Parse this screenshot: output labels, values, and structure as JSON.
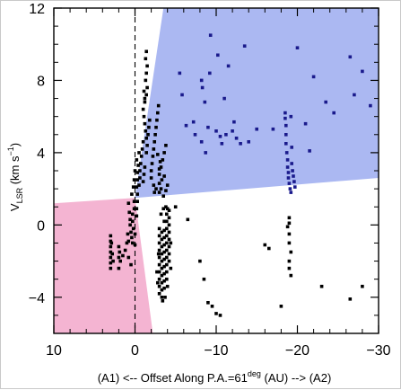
{
  "chart_data": {
    "type": "scatter",
    "title": "",
    "xlabel": {
      "prefix": "(A1) <-- Offset Along P.A.=61",
      "superscript": "deg",
      "suffix": " (AU) --> (A2)"
    },
    "ylabel": {
      "main": "V",
      "subscript": "LSR",
      "unit_open": " (km s",
      "unit_exp": "−1",
      "unit_close": ")"
    },
    "xlim": [
      10,
      -30
    ],
    "ylim": [
      -6,
      12
    ],
    "x_ticks": [
      10,
      0,
      -10,
      -20,
      -30
    ],
    "x_tick_labels": [
      "10",
      "0",
      "−10",
      "−20",
      "−30"
    ],
    "y_ticks": [
      -4,
      0,
      4,
      8,
      12
    ],
    "y_tick_labels": [
      "−4",
      "0",
      "4",
      "8",
      "12"
    ],
    "reference_line": {
      "x": 0,
      "style": "dashed"
    },
    "regions": [
      {
        "name": "blue-region",
        "color": "#abb8f2",
        "polygon": [
          [
            0,
            1.5
          ],
          [
            -3.5,
            12
          ],
          [
            -30,
            12
          ],
          [
            -30,
            2.6
          ]
        ]
      },
      {
        "name": "pink-region",
        "color": "#f4b4d2",
        "polygon": [
          [
            10,
            1.2
          ],
          [
            0,
            1.5
          ],
          [
            -2.2,
            -6
          ],
          [
            10,
            -6
          ]
        ]
      }
    ],
    "series": [
      {
        "color": "#000000",
        "points": [
          [
            3.0,
            -0.6
          ],
          [
            3.0,
            -0.9
          ],
          [
            3.0,
            -1.2
          ],
          [
            3.0,
            -1.5
          ],
          [
            3.0,
            -1.8
          ],
          [
            3.0,
            -2.1
          ],
          [
            3.0,
            -2.4
          ],
          [
            2.9,
            -1.0
          ],
          [
            2.8,
            -1.6
          ],
          [
            2.7,
            -2.0
          ],
          [
            2.0,
            -1.2
          ],
          [
            2.0,
            -1.8
          ],
          [
            2.0,
            -2.4
          ],
          [
            1.9,
            -1.5
          ],
          [
            1.8,
            -2.0
          ],
          [
            1.5,
            -1.7
          ],
          [
            1.2,
            -1.4
          ],
          [
            1.0,
            -1.0
          ],
          [
            0.8,
            -1.8
          ],
          [
            0.5,
            -2.2
          ],
          [
            0.5,
            -0.4
          ],
          [
            0.4,
            -0.7
          ],
          [
            0.3,
            -1.0
          ],
          [
            0.3,
            0.2
          ],
          [
            0.3,
            0.6
          ],
          [
            0.2,
            -0.2
          ],
          [
            0.1,
            0.9
          ],
          [
            0.1,
            1.3
          ],
          [
            0.0,
            -0.5
          ],
          [
            0.0,
            -1.1
          ],
          [
            0.6,
            0.0
          ],
          [
            0.6,
            0.3
          ],
          [
            0.7,
            0.7
          ],
          [
            0.8,
            1.2
          ],
          [
            0.8,
            -0.9
          ],
          [
            0.9,
            -0.5
          ],
          [
            0.4,
            1.7
          ],
          [
            0.2,
            2.1
          ],
          [
            0.1,
            2.5
          ],
          [
            0.0,
            3.0
          ],
          [
            -0.2,
            0.5
          ],
          [
            -0.2,
            0.9
          ],
          [
            -0.3,
            1.3
          ],
          [
            -0.3,
            1.7
          ],
          [
            -0.2,
            2.1
          ],
          [
            -0.3,
            2.5
          ],
          [
            -0.3,
            2.9
          ],
          [
            -0.4,
            3.3
          ],
          [
            -0.2,
            3.6
          ],
          [
            -0.5,
            4.0
          ],
          [
            -0.5,
            2.2
          ],
          [
            -0.6,
            2.6
          ],
          [
            -0.6,
            3.0
          ],
          [
            -0.7,
            3.4
          ],
          [
            -0.8,
            3.8
          ],
          [
            -0.9,
            4.2
          ],
          [
            -1.0,
            4.6
          ],
          [
            -1.0,
            2.4
          ],
          [
            -1.1,
            2.8
          ],
          [
            -1.2,
            3.2
          ],
          [
            -1.4,
            4.0
          ],
          [
            -1.5,
            4.4
          ],
          [
            -1.4,
            4.8
          ],
          [
            -1.3,
            5.2
          ],
          [
            -1.2,
            5.6
          ],
          [
            -1.1,
            6.0
          ],
          [
            -1.0,
            6.4
          ],
          [
            -1.2,
            6.8
          ],
          [
            -1.4,
            7.2
          ],
          [
            -1.5,
            7.6
          ],
          [
            -1.3,
            8.0
          ],
          [
            -1.4,
            8.4
          ],
          [
            -1.5,
            8.8
          ],
          [
            -1.3,
            9.2
          ],
          [
            -1.4,
            9.6
          ],
          [
            -1.2,
            7.0
          ],
          [
            -1.1,
            7.4
          ],
          [
            -1.6,
            5.0
          ],
          [
            -1.7,
            5.4
          ],
          [
            -1.8,
            5.8
          ],
          [
            -2.0,
            3.0
          ],
          [
            -2.1,
            3.4
          ],
          [
            -2.2,
            3.8
          ],
          [
            -2.3,
            4.2
          ],
          [
            -2.4,
            4.6
          ],
          [
            -2.5,
            5.0
          ],
          [
            -2.6,
            5.4
          ],
          [
            -2.7,
            5.8
          ],
          [
            -2.8,
            6.2
          ],
          [
            -2.9,
            6.6
          ],
          [
            -2.0,
            2.6
          ],
          [
            -2.3,
            2.2
          ],
          [
            -2.6,
            2.0
          ],
          [
            -3.0,
            2.3
          ],
          [
            -3.3,
            2.5
          ],
          [
            -3.6,
            2.7
          ],
          [
            -3.0,
            2.8
          ],
          [
            -3.2,
            3.2
          ],
          [
            -3.4,
            3.6
          ],
          [
            -3.6,
            4.0
          ],
          [
            -3.8,
            4.4
          ],
          [
            -3.0,
            3.1
          ],
          [
            -3.1,
            3.5
          ],
          [
            -2.8,
            3.9
          ],
          [
            -3.0,
            1.8
          ],
          [
            -3.2,
            2.0
          ],
          [
            -3.5,
            1.6
          ],
          [
            -3.8,
            1.9
          ],
          [
            -4.0,
            2.2
          ],
          [
            -2.4,
            1.8
          ],
          [
            -3.0,
            -0.2
          ],
          [
            -3.0,
            -0.6
          ],
          [
            -3.0,
            -1.0
          ],
          [
            -3.0,
            -1.4
          ],
          [
            -3.0,
            -1.8
          ],
          [
            -3.0,
            -2.2
          ],
          [
            -3.0,
            -2.6
          ],
          [
            -3.0,
            -3.0
          ],
          [
            -3.0,
            -3.4
          ],
          [
            -3.0,
            -3.8
          ],
          [
            -3.3,
            -0.4
          ],
          [
            -3.3,
            -0.8
          ],
          [
            -3.3,
            -1.2
          ],
          [
            -3.3,
            -1.6
          ],
          [
            -3.3,
            -2.0
          ],
          [
            -3.3,
            -2.4
          ],
          [
            -3.3,
            -2.8
          ],
          [
            -3.3,
            -3.2
          ],
          [
            -3.3,
            -3.6
          ],
          [
            -3.3,
            -4.0
          ],
          [
            -3.6,
            0.2
          ],
          [
            -3.6,
            -0.3
          ],
          [
            -3.6,
            -0.7
          ],
          [
            -3.6,
            -1.1
          ],
          [
            -3.6,
            -1.5
          ],
          [
            -3.6,
            -1.9
          ],
          [
            -3.6,
            -2.3
          ],
          [
            -3.6,
            -2.7
          ],
          [
            -3.6,
            -3.1
          ],
          [
            -3.6,
            -3.5
          ],
          [
            -3.9,
            0.6
          ],
          [
            -3.9,
            0.2
          ],
          [
            -3.9,
            -0.2
          ],
          [
            -3.9,
            -0.6
          ],
          [
            -3.9,
            -1.0
          ],
          [
            -3.9,
            -1.4
          ],
          [
            -3.9,
            -1.8
          ],
          [
            -3.9,
            -2.2
          ],
          [
            -3.9,
            -2.6
          ],
          [
            -3.9,
            -3.0
          ],
          [
            -4.2,
            0.8
          ],
          [
            -4.2,
            0.4
          ],
          [
            -4.2,
            0.0
          ],
          [
            -4.2,
            -0.4
          ],
          [
            -4.2,
            -0.8
          ],
          [
            -4.2,
            -1.2
          ],
          [
            -4.2,
            -1.6
          ],
          [
            -4.2,
            -2.0
          ],
          [
            -4.4,
            -1.0
          ],
          [
            -4.4,
            -2.4
          ],
          [
            -2.8,
            -3.2
          ],
          [
            -2.7,
            -2.6
          ],
          [
            -2.9,
            -1.6
          ],
          [
            -3.4,
            -4.2
          ],
          [
            -3.7,
            -4.0
          ],
          [
            -4.0,
            -3.4
          ],
          [
            -4.0,
            0.9
          ],
          [
            -3.5,
            0.9
          ],
          [
            -3.2,
            0.6
          ],
          [
            -3.8,
            1.0
          ],
          [
            -5.0,
            1.0
          ],
          [
            -6.5,
            0.3
          ],
          [
            -8.0,
            -2.0
          ],
          [
            -8.5,
            -3.0
          ],
          [
            -9.0,
            -4.3
          ],
          [
            -9.5,
            -4.5
          ],
          [
            -10.0,
            -4.9
          ],
          [
            -10.5,
            -5.0
          ],
          [
            -16.0,
            -1.1
          ],
          [
            -16.5,
            -1.3
          ],
          [
            -18.0,
            -4.5
          ],
          [
            -18.8,
            -0.1
          ],
          [
            -19.0,
            -0.5
          ],
          [
            -19.0,
            -1.0
          ],
          [
            -19.2,
            -1.5
          ],
          [
            -19.0,
            -2.0
          ],
          [
            -19.0,
            -2.4
          ],
          [
            -19.2,
            -2.8
          ],
          [
            -19.0,
            0.1
          ],
          [
            -19.0,
            0.4
          ],
          [
            -23.0,
            -3.4
          ],
          [
            -26.5,
            -4.1
          ],
          [
            -28.0,
            -3.4
          ]
        ]
      },
      {
        "color": "#1a1a8c",
        "points": [
          [
            -5.5,
            8.4
          ],
          [
            -5.8,
            7.2
          ],
          [
            -6.3,
            5.5
          ],
          [
            -7.2,
            5.7
          ],
          [
            -7.4,
            5.0
          ],
          [
            -8.2,
            4.6
          ],
          [
            -8.2,
            8.0
          ],
          [
            -8.3,
            7.6
          ],
          [
            -8.6,
            6.8
          ],
          [
            -8.7,
            4.0
          ],
          [
            -9.0,
            5.4
          ],
          [
            -9.2,
            8.4
          ],
          [
            -9.3,
            10.5
          ],
          [
            -10.0,
            5.2
          ],
          [
            -10.2,
            9.4
          ],
          [
            -10.5,
            4.9
          ],
          [
            -10.7,
            4.5
          ],
          [
            -11.0,
            7.0
          ],
          [
            -11.2,
            5.0
          ],
          [
            -11.5,
            8.8
          ],
          [
            -12.0,
            5.2
          ],
          [
            -12.2,
            5.7
          ],
          [
            -12.5,
            4.8
          ],
          [
            -13.0,
            4.5
          ],
          [
            -13.5,
            9.9
          ],
          [
            -14.0,
            4.6
          ],
          [
            -15.0,
            5.3
          ],
          [
            -17.0,
            5.3
          ],
          [
            -18.5,
            6.2
          ],
          [
            -18.5,
            5.9
          ],
          [
            -18.6,
            5.5
          ],
          [
            -18.6,
            5.0
          ],
          [
            -18.6,
            4.5
          ],
          [
            -18.7,
            4.0
          ],
          [
            -18.8,
            3.6
          ],
          [
            -18.8,
            3.2
          ],
          [
            -18.9,
            2.9
          ],
          [
            -18.9,
            2.6
          ],
          [
            -19.0,
            2.3
          ],
          [
            -19.1,
            2.0
          ],
          [
            -19.2,
            1.8
          ],
          [
            -19.3,
            3.4
          ],
          [
            -19.4,
            3.0
          ],
          [
            -19.5,
            2.7
          ],
          [
            -19.6,
            2.4
          ],
          [
            -19.7,
            2.1
          ],
          [
            -19.2,
            6.0
          ],
          [
            -19.3,
            4.3
          ],
          [
            -20.0,
            9.8
          ],
          [
            -21.0,
            5.6
          ],
          [
            -22.0,
            8.2
          ],
          [
            -23.5,
            6.8
          ],
          [
            -24.5,
            6.2
          ],
          [
            -26.5,
            9.3
          ],
          [
            -27.0,
            7.2
          ],
          [
            -28.0,
            8.5
          ],
          [
            -29.0,
            6.6
          ],
          [
            -21.5,
            4.1
          ]
        ]
      }
    ]
  }
}
